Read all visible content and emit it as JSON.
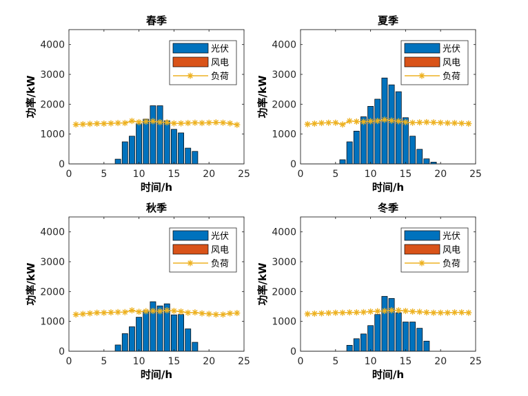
{
  "chart_data": [
    {
      "type": "bar",
      "title": "春季",
      "xlabel": "时间/h",
      "ylabel": "功率/kW",
      "xlim": [
        0,
        25
      ],
      "ylim": [
        0,
        4500
      ],
      "xticks": [
        "0",
        "5",
        "10",
        "15",
        "20",
        "25"
      ],
      "yticks": [
        "0",
        "1000",
        "2000",
        "3000",
        "4000"
      ],
      "legend_position": "top-right",
      "grid": false,
      "x": [
        1,
        2,
        3,
        4,
        5,
        6,
        7,
        8,
        9,
        10,
        11,
        12,
        13,
        14,
        15,
        16,
        17,
        18,
        19,
        20,
        21,
        22,
        23,
        24
      ],
      "series": [
        {
          "name": "光伏",
          "kind": "bar",
          "color": "#0072BD",
          "values": [
            0,
            0,
            0,
            0,
            0,
            0,
            160,
            740,
            930,
            1350,
            1500,
            1950,
            1950,
            1450,
            1160,
            1040,
            530,
            420,
            0,
            0,
            0,
            0,
            0,
            0
          ]
        },
        {
          "name": "风电",
          "kind": "bar",
          "color": "#D95319",
          "values": [
            0,
            0,
            0,
            0,
            0,
            0,
            0,
            0,
            0,
            0,
            0,
            0,
            0,
            0,
            0,
            0,
            0,
            0,
            0,
            0,
            0,
            0,
            0,
            0
          ]
        },
        {
          "name": "负荷",
          "kind": "line",
          "color": "#EDB120",
          "values": [
            1320,
            1330,
            1340,
            1350,
            1350,
            1360,
            1370,
            1370,
            1440,
            1400,
            1420,
            1430,
            1400,
            1390,
            1360,
            1360,
            1370,
            1380,
            1370,
            1380,
            1390,
            1380,
            1360,
            1310
          ]
        }
      ]
    },
    {
      "type": "bar",
      "title": "夏季",
      "xlabel": "时间/h",
      "ylabel": "功率/kW",
      "xlim": [
        0,
        25
      ],
      "ylim": [
        0,
        4500
      ],
      "xticks": [
        "0",
        "5",
        "10",
        "15",
        "20",
        "25"
      ],
      "yticks": [
        "0",
        "1000",
        "2000",
        "3000",
        "4000"
      ],
      "legend_position": "top-right",
      "grid": false,
      "x": [
        1,
        2,
        3,
        4,
        5,
        6,
        7,
        8,
        9,
        10,
        11,
        12,
        13,
        14,
        15,
        16,
        17,
        18,
        19,
        20,
        21,
        22,
        23,
        24
      ],
      "series": [
        {
          "name": "光伏",
          "kind": "bar",
          "color": "#0072BD",
          "values": [
            0,
            0,
            0,
            0,
            0,
            140,
            740,
            1100,
            1580,
            1930,
            2170,
            2880,
            2650,
            2420,
            1550,
            930,
            490,
            170,
            60,
            0,
            0,
            0,
            0,
            0
          ]
        },
        {
          "name": "风电",
          "kind": "bar",
          "color": "#D95319",
          "values": [
            0,
            0,
            0,
            0,
            0,
            0,
            0,
            0,
            0,
            0,
            0,
            0,
            0,
            0,
            0,
            0,
            0,
            0,
            0,
            0,
            0,
            0,
            0,
            0
          ]
        },
        {
          "name": "负荷",
          "kind": "line",
          "color": "#EDB120",
          "values": [
            1330,
            1350,
            1370,
            1380,
            1380,
            1320,
            1440,
            1420,
            1410,
            1430,
            1440,
            1480,
            1450,
            1430,
            1400,
            1380,
            1390,
            1400,
            1390,
            1380,
            1370,
            1370,
            1360,
            1350
          ]
        }
      ]
    },
    {
      "type": "bar",
      "title": "秋季",
      "xlabel": "时间/h",
      "ylabel": "功率/kW",
      "xlim": [
        0,
        25
      ],
      "ylim": [
        0,
        4500
      ],
      "xticks": [
        "0",
        "5",
        "10",
        "15",
        "20",
        "25"
      ],
      "yticks": [
        "0",
        "1000",
        "2000",
        "3000",
        "4000"
      ],
      "legend_position": "top-right",
      "grid": false,
      "x": [
        1,
        2,
        3,
        4,
        5,
        6,
        7,
        8,
        9,
        10,
        11,
        12,
        13,
        14,
        15,
        16,
        17,
        18,
        19,
        20,
        21,
        22,
        23,
        24
      ],
      "series": [
        {
          "name": "光伏",
          "kind": "bar",
          "color": "#0072BD",
          "values": [
            0,
            0,
            0,
            0,
            0,
            0,
            210,
            590,
            820,
            1140,
            1360,
            1660,
            1520,
            1590,
            1220,
            1230,
            750,
            300,
            0,
            0,
            0,
            0,
            0,
            0
          ]
        },
        {
          "name": "风电",
          "kind": "bar",
          "color": "#D95319",
          "values": [
            0,
            0,
            0,
            0,
            0,
            0,
            0,
            0,
            0,
            0,
            0,
            0,
            0,
            0,
            0,
            0,
            0,
            0,
            0,
            0,
            0,
            0,
            0,
            0
          ]
        },
        {
          "name": "负荷",
          "kind": "line",
          "color": "#EDB120",
          "values": [
            1230,
            1250,
            1270,
            1290,
            1290,
            1300,
            1310,
            1310,
            1370,
            1320,
            1340,
            1350,
            1340,
            1370,
            1350,
            1330,
            1290,
            1300,
            1270,
            1250,
            1230,
            1230,
            1270,
            1280
          ]
        }
      ]
    },
    {
      "type": "bar",
      "title": "冬季",
      "xlabel": "时间/h",
      "ylabel": "功率/kW",
      "xlim": [
        0,
        25
      ],
      "ylim": [
        0,
        4500
      ],
      "xticks": [
        "0",
        "5",
        "10",
        "15",
        "20",
        "25"
      ],
      "yticks": [
        "0",
        "1000",
        "2000",
        "3000",
        "4000"
      ],
      "legend_position": "top-right",
      "grid": false,
      "x": [
        1,
        2,
        3,
        4,
        5,
        6,
        7,
        8,
        9,
        10,
        11,
        12,
        13,
        14,
        15,
        16,
        17,
        18,
        19,
        20,
        21,
        22,
        23,
        24
      ],
      "series": [
        {
          "name": "光伏",
          "kind": "bar",
          "color": "#0072BD",
          "values": [
            0,
            0,
            0,
            0,
            0,
            0,
            200,
            420,
            580,
            860,
            1230,
            1840,
            1770,
            1290,
            980,
            980,
            770,
            340,
            0,
            0,
            0,
            0,
            0,
            0
          ]
        },
        {
          "name": "风电",
          "kind": "bar",
          "color": "#D95319",
          "values": [
            0,
            0,
            0,
            0,
            0,
            0,
            0,
            0,
            0,
            0,
            0,
            0,
            0,
            0,
            0,
            0,
            0,
            0,
            0,
            0,
            0,
            0,
            0,
            0
          ]
        },
        {
          "name": "负荷",
          "kind": "line",
          "color": "#EDB120",
          "values": [
            1250,
            1260,
            1270,
            1280,
            1290,
            1290,
            1300,
            1300,
            1310,
            1330,
            1340,
            1350,
            1370,
            1370,
            1350,
            1330,
            1320,
            1300,
            1290,
            1290,
            1290,
            1300,
            1300,
            1290
          ]
        }
      ]
    }
  ]
}
